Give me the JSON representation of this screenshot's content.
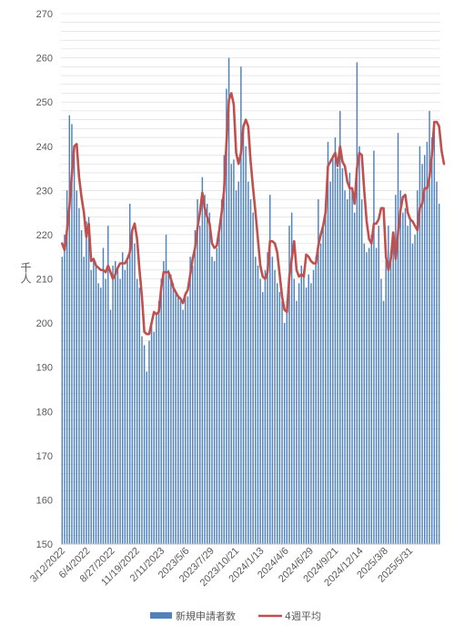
{
  "chart_data": {
    "type": "bar",
    "ylabel": "千人",
    "ylim": [
      150,
      270
    ],
    "yticks": [
      150,
      160,
      170,
      180,
      190,
      200,
      210,
      220,
      230,
      240,
      250,
      260,
      270
    ],
    "grid": true,
    "legend_position": "bottom",
    "x_tick_labels": [
      "3/12/2022",
      "6/4/2022",
      "8/27/2022",
      "11/19/2022",
      "2/11/2023",
      "2023/5/6",
      "2023/7/29",
      "2023/10/21",
      "2024/1/13",
      "2024/4/6",
      "2024/6/29",
      "2024/9/21",
      "2024/12/14",
      "2025/3/8",
      "2025/5/31"
    ],
    "series": [
      {
        "name": "新規申請者数",
        "kind": "bar",
        "color": "#4f81bd",
        "values": [
          215,
          220,
          230,
          247,
          245,
          238,
          230,
          226,
          221,
          215,
          223,
          224,
          212,
          214,
          213,
          209,
          208,
          217,
          210,
          222,
          203,
          213,
          214,
          212,
          210,
          216,
          212,
          214,
          227,
          221,
          218,
          210,
          208,
          197,
          195,
          189,
          196,
          200,
          198,
          202,
          205,
          210,
          214,
          220,
          212,
          211,
          209,
          207,
          206,
          205,
          203,
          207,
          206,
          215,
          213,
          221,
          228,
          222,
          233,
          229,
          227,
          225,
          215,
          214,
          217,
          222,
          228,
          238,
          253,
          260,
          236,
          237,
          230,
          232,
          258,
          245,
          240,
          232,
          228,
          225,
          215,
          213,
          210,
          207,
          212,
          216,
          229,
          215,
          212,
          209,
          207,
          205,
          200,
          205,
          222,
          225,
          210,
          205,
          209,
          213,
          212,
          208,
          211,
          209,
          212,
          215,
          228,
          218,
          222,
          225,
          241,
          232,
          238,
          242,
          235,
          248,
          235,
          230,
          228,
          234,
          230,
          225,
          259,
          240,
          228,
          218,
          216,
          217,
          220,
          239,
          217,
          222,
          210,
          205,
          214,
          222,
          215,
          220,
          229,
          243,
          230,
          225,
          226,
          222,
          224,
          218,
          220,
          230,
          240,
          236,
          238,
          241,
          248,
          242,
          244,
          232,
          227
        ]
      },
      {
        "name": "4週平均",
        "kind": "line",
        "color": "#c0504d",
        "values": [
          218.0,
          216.5,
          221.0,
          226.5,
          233.5,
          240.0,
          240.5,
          233.0,
          228.5,
          225.0,
          219.5,
          222.5,
          214.0,
          214.5,
          213.0,
          212.5,
          212.0,
          212.0,
          211.5,
          213.0,
          211.5,
          210.0,
          211.0,
          212.5,
          213.5,
          213.5,
          213.5,
          214.5,
          216.0,
          221.0,
          222.5,
          219.0,
          212.0,
          206.0,
          198.0,
          197.5,
          197.5,
          200.0,
          202.5,
          202.0,
          202.5,
          208.0,
          211.5,
          211.5,
          211.5,
          210.0,
          208.0,
          207.0,
          206.0,
          205.5,
          204.5,
          206.5,
          207.5,
          211.0,
          214.5,
          217.0,
          221.5,
          225.0,
          229.5,
          226.0,
          224.0,
          222.5,
          218.0,
          217.0,
          217.5,
          221.0,
          225.0,
          230.0,
          241.0,
          250.5,
          252.0,
          249.5,
          238.5,
          236.0,
          238.5,
          244.5,
          246.0,
          244.5,
          236.5,
          230.5,
          225.0,
          219.0,
          213.0,
          210.5,
          210.0,
          211.5,
          218.5,
          218.5,
          218.0,
          216.0,
          211.0,
          206.0,
          203.0,
          202.5,
          210.5,
          214.5,
          218.5,
          212.0,
          210.5,
          211.0,
          210.5,
          215.5,
          215.0,
          214.0,
          213.5,
          213.5,
          217.5,
          220.0,
          222.0,
          225.0,
          235.5,
          236.5,
          237.5,
          238.5,
          235.5,
          240.0,
          236.5,
          235.5,
          232.0,
          230.5,
          230.5,
          227.0,
          235.0,
          238.5,
          238.0,
          230.0,
          223.0,
          219.0,
          218.0,
          222.5,
          222.5,
          223.5,
          226.0,
          226.0,
          215.0,
          212.0,
          214.5,
          220.5,
          214.5,
          220.5,
          225.5,
          228.5,
          229.0,
          225.0,
          223.5,
          223.0,
          222.0,
          221.0,
          226.0,
          227.0,
          230.5,
          230.5,
          233.0,
          238.0,
          245.5,
          245.5,
          244.5,
          239.0,
          236.0
        ]
      }
    ]
  }
}
